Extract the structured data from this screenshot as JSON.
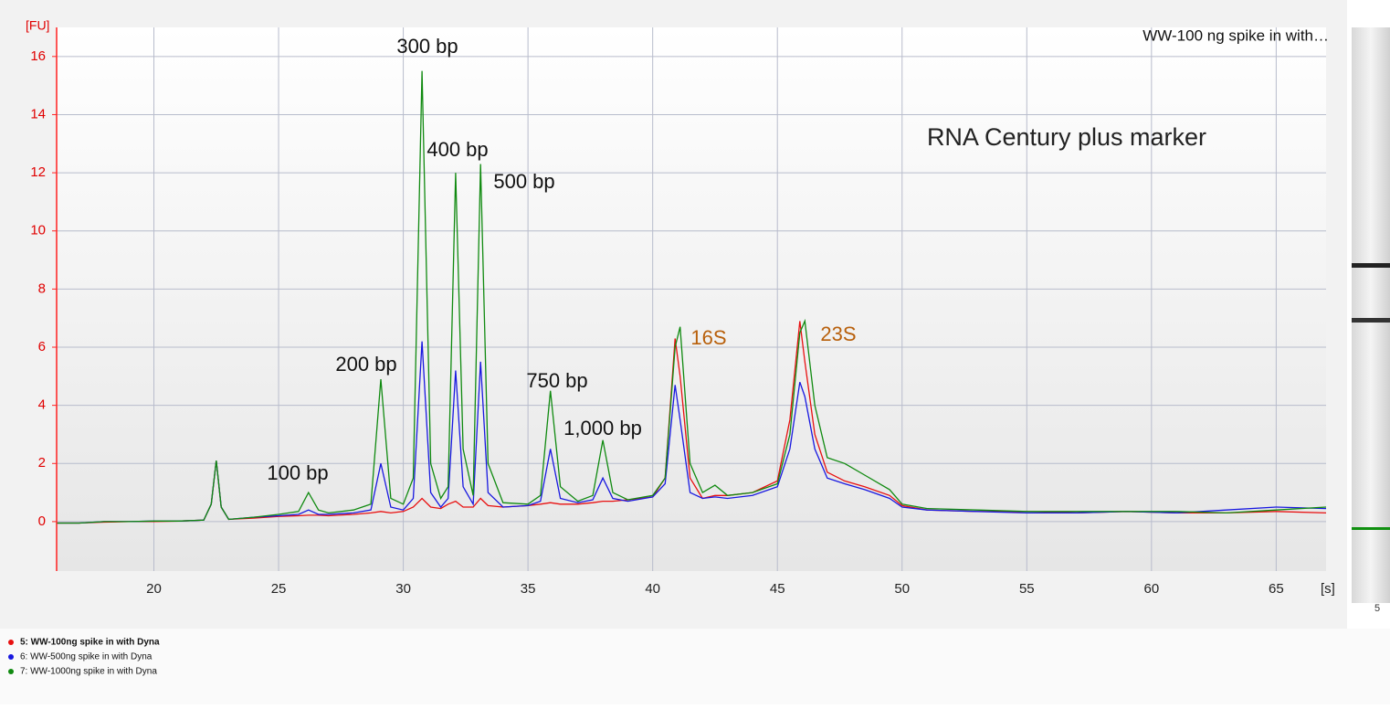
{
  "chart_data": {
    "type": "line",
    "sample_label": "WW-100 ng spike in with…",
    "ylabel": "[FU]",
    "xlabel": "[s]",
    "gel_lane_label": "5",
    "annotations": [
      "300 bp",
      "400 bp",
      "500 bp",
      "200 bp",
      "750 bp",
      "1,000 bp",
      "100 bp",
      "16S",
      "23S",
      "RNA Century plus marker"
    ],
    "xlim": [
      16.1,
      67
    ],
    "ylim": [
      -1.7,
      17
    ],
    "xticks": [
      20,
      25,
      30,
      35,
      40,
      45,
      50,
      55,
      60,
      65
    ],
    "yticks": [
      0,
      2,
      4,
      6,
      8,
      10,
      12,
      14,
      16
    ],
    "grid": true,
    "x": [
      16.1,
      17,
      18,
      19,
      20,
      21,
      22,
      22.3,
      22.5,
      22.7,
      23,
      24,
      25,
      25.8,
      26.2,
      26.6,
      27,
      28,
      28.7,
      29.1,
      29.5,
      30,
      30.4,
      30.75,
      31.1,
      31.5,
      31.8,
      32.1,
      32.4,
      32.8,
      33.1,
      33.4,
      34,
      35,
      35.5,
      35.9,
      36.3,
      37,
      37.6,
      38,
      38.4,
      39,
      40,
      40.5,
      40.9,
      41.1,
      41.5,
      42,
      42.5,
      43,
      44,
      45,
      45.5,
      45.9,
      46.1,
      46.5,
      47,
      47.7,
      48.5,
      49.5,
      50,
      51,
      53,
      55,
      57,
      59,
      61,
      63,
      65,
      67
    ],
    "series": [
      {
        "name": "5: WW-100ng spike in with Dyna",
        "color": "#e81010",
        "values": [
          -0.05,
          -0.05,
          -0.02,
          0.0,
          0.0,
          0.02,
          0.05,
          0.6,
          2.1,
          0.5,
          0.08,
          0.12,
          0.18,
          0.2,
          0.22,
          0.22,
          0.2,
          0.25,
          0.3,
          0.35,
          0.3,
          0.35,
          0.5,
          0.8,
          0.5,
          0.45,
          0.6,
          0.7,
          0.5,
          0.5,
          0.8,
          0.55,
          0.5,
          0.55,
          0.6,
          0.65,
          0.6,
          0.6,
          0.65,
          0.7,
          0.7,
          0.75,
          0.85,
          1.5,
          6.3,
          5.0,
          1.5,
          0.8,
          0.9,
          0.9,
          1.0,
          1.4,
          3.5,
          6.9,
          5.5,
          3.0,
          1.7,
          1.4,
          1.2,
          0.9,
          0.55,
          0.4,
          0.35,
          0.35,
          0.3,
          0.35,
          0.3,
          0.3,
          0.35,
          0.3
        ]
      },
      {
        "name": "6: WW-500ng spike in with Dyna",
        "color": "#1818e0",
        "values": [
          -0.05,
          -0.05,
          0.0,
          0.0,
          0.02,
          0.02,
          0.05,
          0.6,
          2.1,
          0.5,
          0.08,
          0.15,
          0.2,
          0.25,
          0.4,
          0.25,
          0.25,
          0.3,
          0.4,
          2.0,
          0.5,
          0.4,
          0.8,
          6.2,
          1.0,
          0.5,
          0.8,
          5.2,
          1.2,
          0.6,
          5.5,
          1.0,
          0.5,
          0.55,
          0.7,
          2.5,
          0.8,
          0.65,
          0.75,
          1.5,
          0.8,
          0.7,
          0.85,
          1.3,
          4.7,
          3.5,
          1.0,
          0.8,
          0.85,
          0.8,
          0.9,
          1.2,
          2.5,
          4.8,
          4.3,
          2.5,
          1.5,
          1.3,
          1.1,
          0.8,
          0.5,
          0.4,
          0.35,
          0.3,
          0.3,
          0.35,
          0.3,
          0.4,
          0.5,
          0.45
        ]
      },
      {
        "name": "7: WW-1000ng spike in with Dyna",
        "color": "#108a10",
        "values": [
          -0.05,
          -0.05,
          0.0,
          0.0,
          0.02,
          0.02,
          0.05,
          0.6,
          2.1,
          0.5,
          0.08,
          0.15,
          0.25,
          0.35,
          1.0,
          0.4,
          0.3,
          0.4,
          0.6,
          4.9,
          0.8,
          0.6,
          1.5,
          15.5,
          2.0,
          0.8,
          1.2,
          12.0,
          2.5,
          0.9,
          12.3,
          2.0,
          0.65,
          0.6,
          0.9,
          4.5,
          1.2,
          0.7,
          0.9,
          2.8,
          1.0,
          0.75,
          0.9,
          1.5,
          6.0,
          6.7,
          2.0,
          1.0,
          1.25,
          0.9,
          1.0,
          1.3,
          3.0,
          6.5,
          6.9,
          4.0,
          2.2,
          2.0,
          1.6,
          1.1,
          0.6,
          0.45,
          0.4,
          0.35,
          0.35,
          0.35,
          0.35,
          0.3,
          0.4,
          0.5
        ]
      }
    ]
  }
}
